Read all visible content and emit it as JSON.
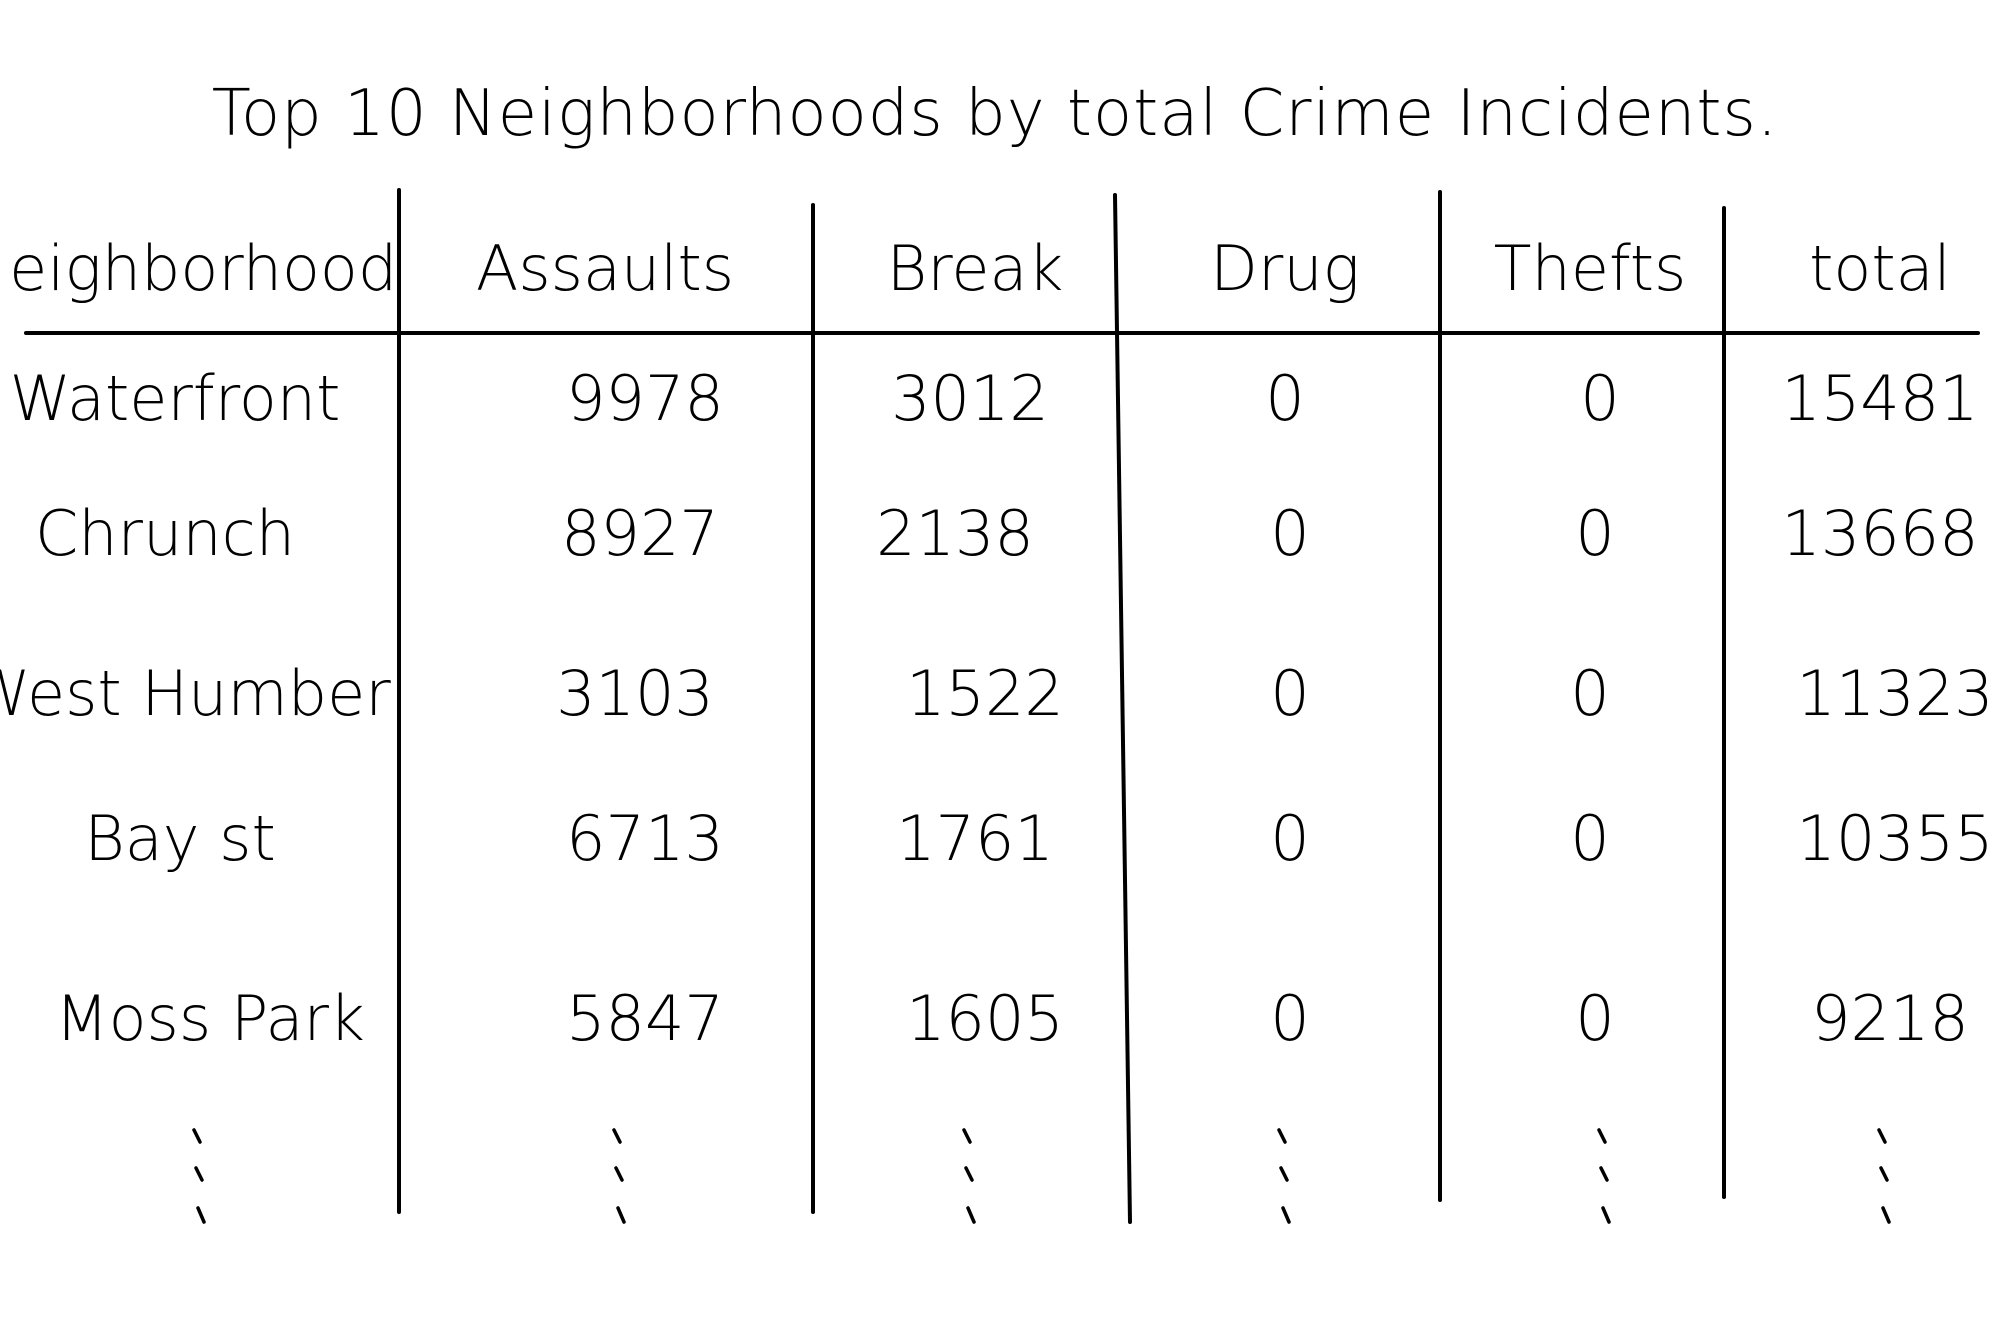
{
  "chart_data": {
    "type": "table",
    "title": "Top 10 Neighborhoods by total Crime Incidents.",
    "columns": [
      "Neighborhood",
      "Assaults",
      "Break",
      "Drug",
      "Thefts",
      "total"
    ],
    "rows": [
      [
        "Waterfront",
        "9978",
        "3012",
        "0",
        "0",
        "15481"
      ],
      [
        "Chrunch",
        "8927",
        "2138",
        "0",
        "0",
        "13668"
      ],
      [
        "West Humber",
        "3103",
        "1522",
        "0",
        "0",
        "11323"
      ],
      [
        "Bay st",
        "6713",
        "1761",
        "0",
        "0",
        "10355"
      ],
      [
        "Moss Park",
        "5847",
        "1605",
        "0",
        "0",
        "9218"
      ]
    ],
    "continuation": "more rows indicated by vertical dots"
  }
}
